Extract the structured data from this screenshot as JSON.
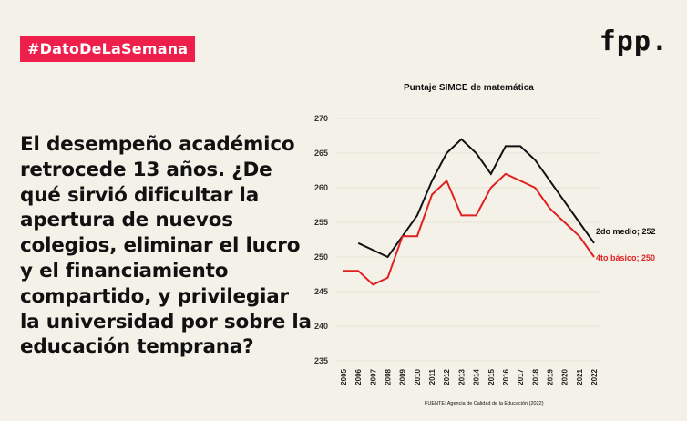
{
  "tag": "#DatoDeLaSemana",
  "logo": "fpp.",
  "headline": "El desempeño académico retrocede 13 años. ¿De qué sirvió dificultar la apertura de nuevos colegios, eliminar el lucro y el financiamiento compartido, y privilegiar la universidad por sobre la educación temprana?",
  "source": "FUENTE: Agencia de Calidad de la Educación (2022)",
  "colors": {
    "accent": "#ee1f4a",
    "series_2do": "#111111",
    "series_4to": "#e02020",
    "background": "#f4f1e8"
  },
  "chart_data": {
    "type": "line",
    "title": "Puntaje SIMCE de matemática",
    "xlabel": "",
    "ylabel": "",
    "x": [
      "2005",
      "2006",
      "2007",
      "2008",
      "2009",
      "2010",
      "2011",
      "2012",
      "2013",
      "2014",
      "2015",
      "2016",
      "2017",
      "2018",
      "2019",
      "2020",
      "2021",
      "2022"
    ],
    "ylim": [
      235,
      270
    ],
    "yticks": [
      235,
      240,
      245,
      250,
      255,
      260,
      265,
      270
    ],
    "grid": true,
    "series": [
      {
        "name": "2do medio",
        "label": "2do medio; 252",
        "color": "#111111",
        "values": [
          null,
          252,
          251,
          250,
          253,
          256,
          261,
          265,
          267,
          265,
          262,
          266,
          266,
          264,
          261,
          258,
          255,
          252
        ]
      },
      {
        "name": "4to básico",
        "label": "4to básico; 250",
        "color": "#e02020",
        "values": [
          248,
          248,
          246,
          247,
          253,
          253,
          259,
          261,
          256,
          256,
          260,
          262,
          261,
          260,
          257,
          255,
          253,
          250
        ]
      }
    ]
  }
}
